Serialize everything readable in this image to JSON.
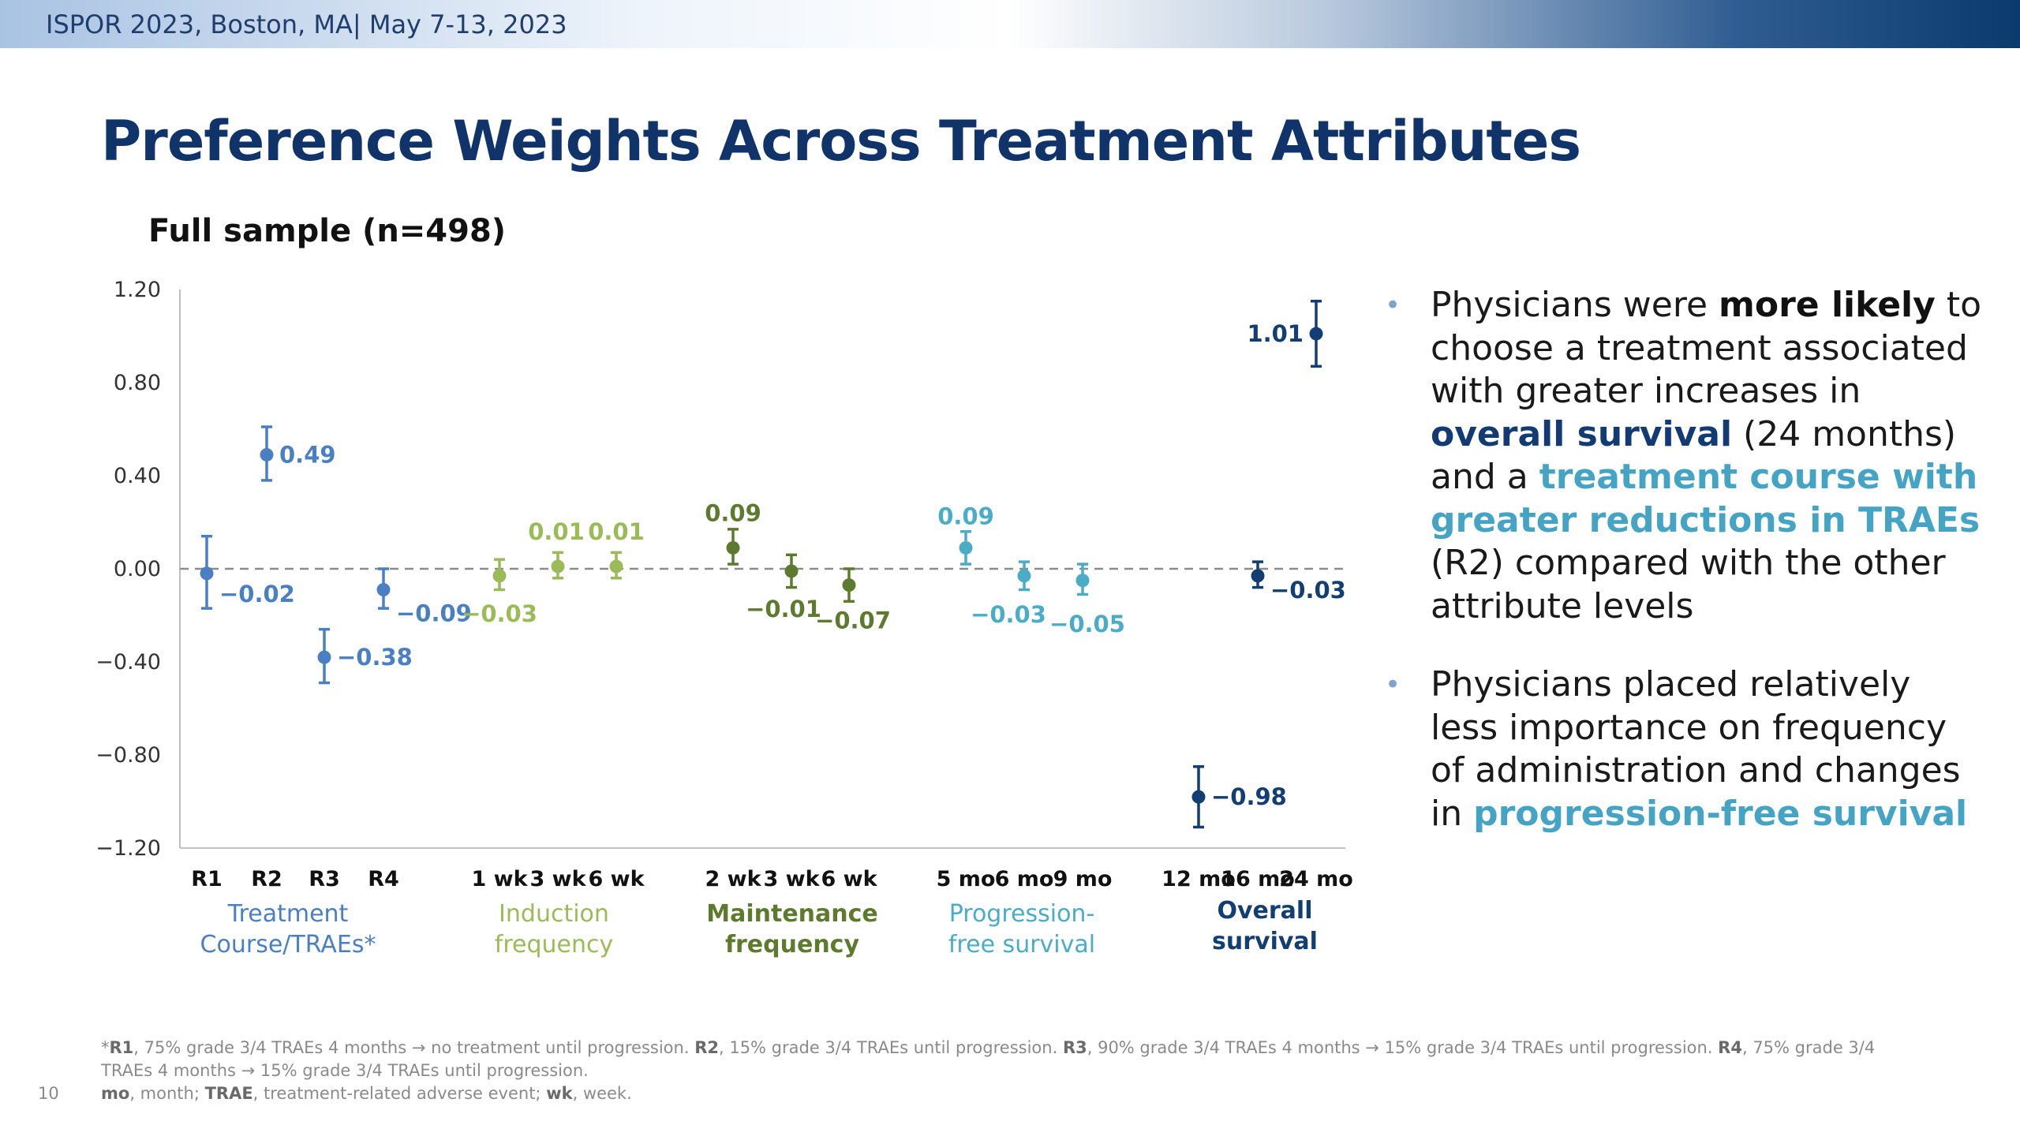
{
  "header": {
    "conference": "ISPOR 2023, Boston, MA| May 7-13, 2023"
  },
  "slide": {
    "title": "Preference Weights Across Treatment Attributes",
    "page_number": "10"
  },
  "chart_data": {
    "type": "scatter",
    "title": "Full sample (n=498)",
    "ylim": [
      -1.2,
      1.2
    ],
    "y_ticks": [
      "1.20",
      "0.80",
      "0.40",
      "0.00",
      "−0.40",
      "−0.80",
      "−1.20"
    ],
    "y_tick_values": [
      1.2,
      0.8,
      0.4,
      0.0,
      -0.4,
      -0.8,
      -1.2
    ],
    "reference_line": 0,
    "groups": [
      {
        "name": "Treatment Course/TRAEs*",
        "name_lines": [
          "Treatment",
          "Course/TRAEs*"
        ],
        "color": "#4a7fc1",
        "points": [
          {
            "x": "R1",
            "value": -0.02,
            "ci": [
              -0.17,
              0.14
            ],
            "label": "−0.02"
          },
          {
            "x": "R2",
            "value": 0.49,
            "ci": [
              0.38,
              0.61
            ],
            "label": "0.49"
          },
          {
            "x": "R3",
            "value": -0.38,
            "ci": [
              -0.49,
              -0.26
            ],
            "label": "−0.38"
          },
          {
            "x": "R4",
            "value": -0.09,
            "ci": [
              -0.17,
              0.0
            ],
            "label": "−0.09"
          }
        ]
      },
      {
        "name": "Induction frequency",
        "name_lines": [
          "Induction",
          "frequency"
        ],
        "color": "#9bbb59",
        "points": [
          {
            "x": "1 wk",
            "value": -0.03,
            "ci": [
              -0.09,
              0.04
            ],
            "label": "−0.03"
          },
          {
            "x": "3 wk",
            "value": 0.01,
            "ci": [
              -0.04,
              0.07
            ],
            "label": "0.01"
          },
          {
            "x": "6 wk",
            "value": 0.01,
            "ci": [
              -0.04,
              0.07
            ],
            "label": "0.01"
          }
        ]
      },
      {
        "name": "Maintenance frequency",
        "name_lines": [
          "Maintenance",
          "frequency"
        ],
        "color": "#5e7a2e",
        "points": [
          {
            "x": "2 wk",
            "value": 0.09,
            "ci": [
              0.02,
              0.17
            ],
            "label": "0.09"
          },
          {
            "x": "3 wk",
            "value": -0.01,
            "ci": [
              -0.08,
              0.06
            ],
            "label": "−0.01"
          },
          {
            "x": "6 wk",
            "value": -0.07,
            "ci": [
              -0.14,
              0.0
            ],
            "label": "−0.07"
          }
        ]
      },
      {
        "name": "Progression-free survival",
        "name_lines": [
          "Progression-",
          "free survival"
        ],
        "color": "#4bacc6",
        "points": [
          {
            "x": "5 mo",
            "value": 0.09,
            "ci": [
              0.02,
              0.16
            ],
            "label": "0.09"
          },
          {
            "x": "6 mo",
            "value": -0.03,
            "ci": [
              -0.09,
              0.03
            ],
            "label": "−0.03"
          },
          {
            "x": "9 mo",
            "value": -0.05,
            "ci": [
              -0.11,
              0.02
            ],
            "label": "−0.05"
          }
        ]
      },
      {
        "name": "Overall survival",
        "name_lines": [
          "Overall",
          "survival"
        ],
        "color": "#123e72",
        "points": [
          {
            "x": "12 mo",
            "value": -0.98,
            "ci": [
              -1.11,
              -0.85
            ],
            "label": "−0.98"
          },
          {
            "x": "16 mo",
            "value": -0.03,
            "ci": [
              -0.08,
              0.03
            ],
            "label": "−0.03"
          },
          {
            "x": "24 mo",
            "value": 1.01,
            "ci": [
              0.87,
              1.15
            ],
            "label": "1.01"
          }
        ]
      }
    ]
  },
  "bullets": [
    [
      {
        "t": "Physicians were "
      },
      {
        "t": "more likely",
        "s": "strong"
      },
      {
        "t": " to choose a treatment associated with greater increases in "
      },
      {
        "t": "overall survival",
        "s": "navy"
      },
      {
        "t": " (24 months) and a "
      },
      {
        "t": "treatment course with greater reductions in TRAEs",
        "s": "teal"
      },
      {
        "t": " (R2) compared with the other attribute levels"
      }
    ],
    [
      {
        "t": "Physicians placed relatively less importance on frequency of administration and changes in "
      },
      {
        "t": "progression-free survival",
        "s": "teal"
      }
    ]
  ],
  "footnotes": [
    [
      {
        "t": "*"
      },
      {
        "t": "R1",
        "b": true
      },
      {
        "t": ", 75% grade 3/4 TRAEs 4 months → no treatment until progression. "
      },
      {
        "t": "R2",
        "b": true
      },
      {
        "t": ", 15% grade 3/4 TRAEs until progression. "
      },
      {
        "t": "R3",
        "b": true
      },
      {
        "t": ", 90% grade 3/4 TRAEs 4 months → 15% grade 3/4 TRAEs until progression. "
      },
      {
        "t": "R4",
        "b": true
      },
      {
        "t": ", 75% grade 3/4 TRAEs 4 months → 15% grade 3/4 TRAEs until progression."
      }
    ],
    [
      {
        "t": "mo",
        "b": true
      },
      {
        "t": ", month; "
      },
      {
        "t": "TRAE",
        "b": true
      },
      {
        "t": ", treatment-related adverse event; "
      },
      {
        "t": "wk",
        "b": true
      },
      {
        "t": ", week."
      }
    ]
  ]
}
